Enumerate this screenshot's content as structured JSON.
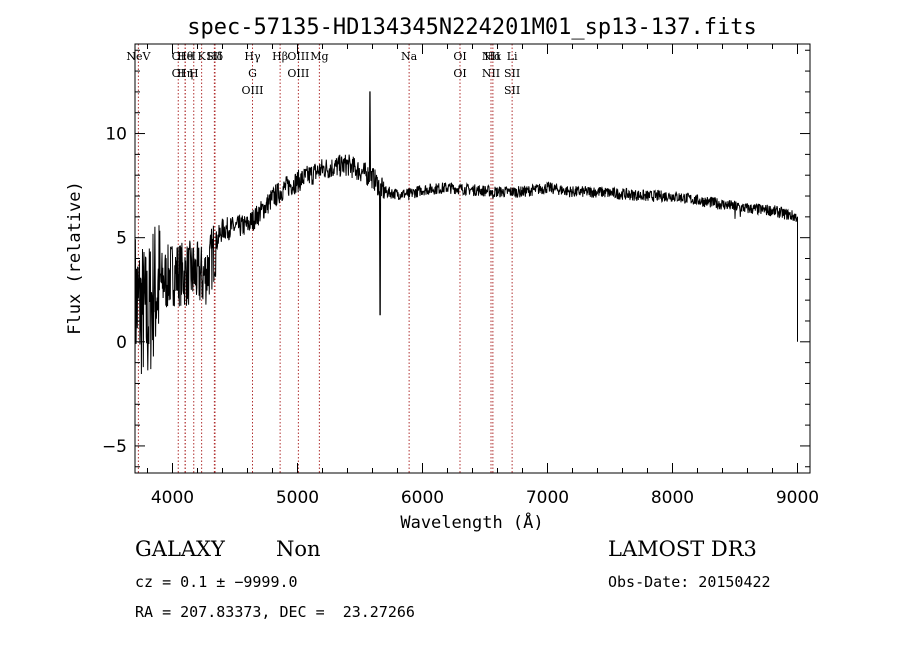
{
  "chart_data": {
    "type": "line",
    "title": "spec-57135-HD134345N224201M01_sp13-137.fits",
    "xlabel": "Wavelength (Å)",
    "ylabel": "Flux (relative)",
    "xlim": [
      3700,
      9100
    ],
    "ylim": [
      -6.3,
      14.3
    ],
    "xticks": [
      4000,
      5000,
      6000,
      7000,
      8000,
      9000
    ],
    "yticks": [
      -5,
      0,
      5,
      10
    ],
    "x_minor_step": 200,
    "y_minor_step": 1,
    "grid": false,
    "line_color": "#000000",
    "marker_color": "#b03030",
    "spectrum_anchors": [
      [
        3700,
        2.0
      ],
      [
        3760,
        1.5
      ],
      [
        3800,
        1.0
      ],
      [
        3850,
        2.5
      ],
      [
        3900,
        2.8
      ],
      [
        3950,
        3.0
      ],
      [
        4000,
        3.3
      ],
      [
        4050,
        3.3
      ],
      [
        4100,
        3.2
      ],
      [
        4150,
        3.3
      ],
      [
        4200,
        3.2
      ],
      [
        4250,
        3.1
      ],
      [
        4300,
        3.7
      ],
      [
        4350,
        4.8
      ],
      [
        4400,
        5.4
      ],
      [
        4500,
        5.5
      ],
      [
        4600,
        5.6
      ],
      [
        4700,
        6.2
      ],
      [
        4800,
        6.9
      ],
      [
        4900,
        7.4
      ],
      [
        5000,
        7.7
      ],
      [
        5100,
        8.0
      ],
      [
        5200,
        8.3
      ],
      [
        5300,
        8.4
      ],
      [
        5400,
        8.5
      ],
      [
        5500,
        8.2
      ],
      [
        5600,
        7.9
      ],
      [
        5650,
        7.5
      ],
      [
        5700,
        7.2
      ],
      [
        5800,
        7.1
      ],
      [
        5900,
        7.1
      ],
      [
        6000,
        7.3
      ],
      [
        6200,
        7.4
      ],
      [
        6400,
        7.3
      ],
      [
        6600,
        7.2
      ],
      [
        6800,
        7.2
      ],
      [
        7000,
        7.4
      ],
      [
        7200,
        7.2
      ],
      [
        7400,
        7.2
      ],
      [
        7600,
        7.1
      ],
      [
        7800,
        7.0
      ],
      [
        8000,
        7.0
      ],
      [
        8200,
        6.8
      ],
      [
        8400,
        6.6
      ],
      [
        8600,
        6.4
      ],
      [
        8800,
        6.3
      ],
      [
        8990,
        6.0
      ]
    ],
    "spectrum_features": [
      {
        "x": 5580,
        "y": 12.0
      },
      {
        "x": 5660,
        "y": 1.3
      },
      {
        "x": 5890,
        "y": 6.8
      },
      {
        "x": 6563,
        "y": 6.9
      },
      {
        "x": 8500,
        "y": 5.9
      },
      {
        "x": 8542,
        "y": 6.0
      },
      {
        "x": 9000,
        "y": 0.0
      }
    ],
    "line_markers": [
      {
        "x": 3727,
        "labels": [
          "NeV"
        ]
      },
      {
        "x": 4046,
        "labels": [
          "OI",
          "OI"
        ]
      },
      {
        "x": 4102,
        "labels": [
          "Hθ"
        ]
      },
      {
        "x": 4101,
        "labels": [
          "He",
          "Hη"
        ]
      },
      {
        "x": 4170,
        "labels": [
          "I",
          "H"
        ]
      },
      {
        "x": 4233,
        "labels": [
          "K"
        ]
      },
      {
        "x": 4335,
        "labels": [
          "SII"
        ]
      },
      {
        "x": 4340,
        "labels": [
          "Hδ"
        ]
      },
      {
        "x": 4640,
        "labels": [
          "Hγ",
          "G",
          "OIII"
        ]
      },
      {
        "x": 4861,
        "labels": [
          "Hβ"
        ]
      },
      {
        "x": 5007,
        "labels": [
          "OIII",
          "OIII"
        ]
      },
      {
        "x": 5175,
        "labels": [
          "Mg"
        ]
      },
      {
        "x": 5893,
        "labels": [
          "Na"
        ]
      },
      {
        "x": 6300,
        "labels": [
          "OI",
          "OI"
        ]
      },
      {
        "x": 6548,
        "labels": [
          "NII",
          "NII"
        ]
      },
      {
        "x": 6563,
        "labels": [
          "Hα"
        ]
      },
      {
        "x": 6717,
        "labels": [
          "Li",
          "SII",
          "SII"
        ]
      }
    ]
  },
  "info": {
    "class_label": "GALAXY",
    "subclass_label": "Non",
    "redshift_line": "cz = 0.1 ± −9999.0",
    "coords_line": "RA = 207.83373, DEC =  23.27266",
    "survey_label": "LAMOST DR3",
    "obs_date_line": "Obs-Date: 20150422"
  }
}
